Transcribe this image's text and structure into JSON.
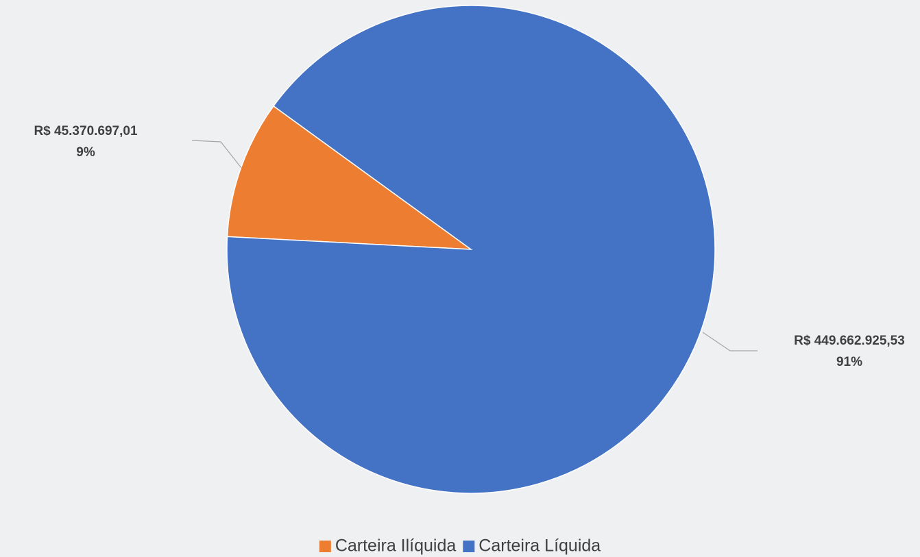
{
  "chart_data": {
    "type": "pie",
    "categories": [
      "Carteira Ilíquida",
      "Carteira Líquida"
    ],
    "values": [
      45370697.01,
      449662925.53
    ],
    "value_labels": [
      "R$ 45.370.697,01",
      "R$ 449.662.925,53"
    ],
    "percents": [
      9,
      91
    ],
    "percent_labels": [
      "9%",
      "91%"
    ],
    "colors": [
      "#ed7d31",
      "#4472c4"
    ],
    "legend": "bottom"
  }
}
